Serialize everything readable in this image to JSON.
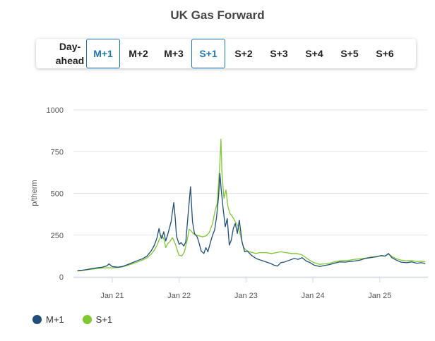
{
  "header": {
    "title": "UK Gas Forward"
  },
  "tabs": [
    {
      "label": "Day-\nahead",
      "active": false
    },
    {
      "label": "M+1",
      "active": true
    },
    {
      "label": "M+2",
      "active": false
    },
    {
      "label": "M+3",
      "active": false
    },
    {
      "label": "S+1",
      "active": true
    },
    {
      "label": "S+2",
      "active": false
    },
    {
      "label": "S+3",
      "active": false
    },
    {
      "label": "S+4",
      "active": false
    },
    {
      "label": "S+5",
      "active": false
    },
    {
      "label": "S+6",
      "active": false
    }
  ],
  "colors": {
    "accent": "#1f77b4",
    "m1": "#1f4e79",
    "s1": "#7ec832",
    "grid": "#e6e6e6"
  },
  "chart_data": {
    "type": "line",
    "title": "UK Gas Forward",
    "xlabel": "",
    "ylabel": "p/therm",
    "ylim": [
      0,
      1000
    ],
    "yticks": [
      0,
      250,
      500,
      750,
      1000
    ],
    "xticks": [
      {
        "label": "Jan 21",
        "x": 2021.0
      },
      {
        "label": "Jan 22",
        "x": 2022.0
      },
      {
        "label": "Jan 23",
        "x": 2023.0
      },
      {
        "label": "Jan 24",
        "x": 2024.0
      },
      {
        "label": "Jan 25",
        "x": 2025.0
      }
    ],
    "xlim": [
      2020.42,
      2025.72
    ],
    "grid": true,
    "legend_position": "bottom-left",
    "series": [
      {
        "name": "M+1",
        "color": "#1f4e79",
        "points": [
          [
            2020.48,
            38
          ],
          [
            2020.55,
            40
          ],
          [
            2020.62,
            44
          ],
          [
            2020.7,
            50
          ],
          [
            2020.78,
            55
          ],
          [
            2020.85,
            58
          ],
          [
            2020.92,
            66
          ],
          [
            2020.95,
            78
          ],
          [
            2021.0,
            62
          ],
          [
            2021.08,
            58
          ],
          [
            2021.15,
            62
          ],
          [
            2021.22,
            72
          ],
          [
            2021.3,
            85
          ],
          [
            2021.38,
            98
          ],
          [
            2021.45,
            108
          ],
          [
            2021.52,
            125
          ],
          [
            2021.58,
            155
          ],
          [
            2021.63,
            190
          ],
          [
            2021.67,
            235
          ],
          [
            2021.7,
            290
          ],
          [
            2021.72,
            250
          ],
          [
            2021.74,
            230
          ],
          [
            2021.77,
            270
          ],
          [
            2021.8,
            215
          ],
          [
            2021.83,
            255
          ],
          [
            2021.86,
            300
          ],
          [
            2021.88,
            330
          ],
          [
            2021.9,
            390
          ],
          [
            2021.92,
            445
          ],
          [
            2021.94,
            360
          ],
          [
            2021.96,
            245
          ],
          [
            2021.98,
            220
          ],
          [
            2022.0,
            195
          ],
          [
            2022.03,
            205
          ],
          [
            2022.07,
            185
          ],
          [
            2022.1,
            210
          ],
          [
            2022.14,
            400
          ],
          [
            2022.17,
            540
          ],
          [
            2022.2,
            330
          ],
          [
            2022.23,
            260
          ],
          [
            2022.27,
            240
          ],
          [
            2022.3,
            200
          ],
          [
            2022.33,
            155
          ],
          [
            2022.37,
            140
          ],
          [
            2022.4,
            175
          ],
          [
            2022.43,
            150
          ],
          [
            2022.47,
            210
          ],
          [
            2022.5,
            250
          ],
          [
            2022.53,
            280
          ],
          [
            2022.56,
            360
          ],
          [
            2022.59,
            480
          ],
          [
            2022.61,
            620
          ],
          [
            2022.63,
            520
          ],
          [
            2022.66,
            400
          ],
          [
            2022.69,
            300
          ],
          [
            2022.72,
            350
          ],
          [
            2022.75,
            190
          ],
          [
            2022.78,
            220
          ],
          [
            2022.81,
            290
          ],
          [
            2022.84,
            320
          ],
          [
            2022.87,
            260
          ],
          [
            2022.9,
            340
          ],
          [
            2022.94,
            210
          ],
          [
            2022.98,
            150
          ],
          [
            2023.02,
            155
          ],
          [
            2023.08,
            130
          ],
          [
            2023.15,
            110
          ],
          [
            2023.22,
            100
          ],
          [
            2023.3,
            90
          ],
          [
            2023.37,
            80
          ],
          [
            2023.42,
            70
          ],
          [
            2023.47,
            65
          ],
          [
            2023.52,
            85
          ],
          [
            2023.58,
            90
          ],
          [
            2023.65,
            100
          ],
          [
            2023.72,
            110
          ],
          [
            2023.78,
            105
          ],
          [
            2023.84,
            115
          ],
          [
            2023.9,
            95
          ],
          [
            2023.96,
            85
          ],
          [
            2024.02,
            70
          ],
          [
            2024.1,
            62
          ],
          [
            2024.17,
            68
          ],
          [
            2024.25,
            74
          ],
          [
            2024.32,
            82
          ],
          [
            2024.4,
            90
          ],
          [
            2024.48,
            88
          ],
          [
            2024.55,
            92
          ],
          [
            2024.62,
            95
          ],
          [
            2024.7,
            100
          ],
          [
            2024.78,
            110
          ],
          [
            2024.86,
            115
          ],
          [
            2024.94,
            120
          ],
          [
            2025.02,
            128
          ],
          [
            2025.08,
            125
          ],
          [
            2025.13,
            140
          ],
          [
            2025.18,
            115
          ],
          [
            2025.25,
            100
          ],
          [
            2025.32,
            88
          ],
          [
            2025.4,
            85
          ],
          [
            2025.48,
            90
          ],
          [
            2025.55,
            82
          ],
          [
            2025.62,
            85
          ],
          [
            2025.68,
            80
          ]
        ]
      },
      {
        "name": "S+1",
        "color": "#7ec832",
        "points": [
          [
            2020.48,
            35
          ],
          [
            2020.55,
            38
          ],
          [
            2020.62,
            42
          ],
          [
            2020.7,
            46
          ],
          [
            2020.78,
            50
          ],
          [
            2020.85,
            53
          ],
          [
            2020.92,
            55
          ],
          [
            2021.0,
            54
          ],
          [
            2021.08,
            56
          ],
          [
            2021.15,
            60
          ],
          [
            2021.22,
            68
          ],
          [
            2021.3,
            78
          ],
          [
            2021.38,
            90
          ],
          [
            2021.45,
            100
          ],
          [
            2021.52,
            115
          ],
          [
            2021.58,
            135
          ],
          [
            2021.63,
            160
          ],
          [
            2021.67,
            190
          ],
          [
            2021.7,
            220
          ],
          [
            2021.74,
            250
          ],
          [
            2021.77,
            230
          ],
          [
            2021.8,
            175
          ],
          [
            2021.83,
            200
          ],
          [
            2021.86,
            210
          ],
          [
            2021.9,
            235
          ],
          [
            2021.94,
            200
          ],
          [
            2021.98,
            150
          ],
          [
            2022.0,
            130
          ],
          [
            2022.04,
            125
          ],
          [
            2022.08,
            150
          ],
          [
            2022.12,
            220
          ],
          [
            2022.15,
            285
          ],
          [
            2022.18,
            275
          ],
          [
            2022.21,
            260
          ],
          [
            2022.25,
            250
          ],
          [
            2022.3,
            245
          ],
          [
            2022.35,
            240
          ],
          [
            2022.4,
            245
          ],
          [
            2022.45,
            265
          ],
          [
            2022.5,
            320
          ],
          [
            2022.54,
            400
          ],
          [
            2022.57,
            440
          ],
          [
            2022.59,
            560
          ],
          [
            2022.61,
            680
          ],
          [
            2022.625,
            825
          ],
          [
            2022.64,
            620
          ],
          [
            2022.67,
            470
          ],
          [
            2022.7,
            520
          ],
          [
            2022.73,
            420
          ],
          [
            2022.76,
            380
          ],
          [
            2022.8,
            360
          ],
          [
            2022.84,
            330
          ],
          [
            2022.88,
            305
          ],
          [
            2022.92,
            245
          ],
          [
            2022.96,
            180
          ],
          [
            2023.0,
            160
          ],
          [
            2023.05,
            150
          ],
          [
            2023.1,
            145
          ],
          [
            2023.15,
            140
          ],
          [
            2023.2,
            145
          ],
          [
            2023.25,
            145
          ],
          [
            2023.3,
            145
          ],
          [
            2023.38,
            140
          ],
          [
            2023.45,
            145
          ],
          [
            2023.52,
            150
          ],
          [
            2023.6,
            145
          ],
          [
            2023.68,
            140
          ],
          [
            2023.75,
            140
          ],
          [
            2023.82,
            135
          ],
          [
            2023.88,
            120
          ],
          [
            2023.95,
            100
          ],
          [
            2024.02,
            85
          ],
          [
            2024.1,
            75
          ],
          [
            2024.18,
            78
          ],
          [
            2024.25,
            82
          ],
          [
            2024.32,
            90
          ],
          [
            2024.4,
            96
          ],
          [
            2024.48,
            98
          ],
          [
            2024.55,
            100
          ],
          [
            2024.62,
            105
          ],
          [
            2024.7,
            108
          ],
          [
            2024.78,
            112
          ],
          [
            2024.86,
            118
          ],
          [
            2024.94,
            122
          ],
          [
            2025.02,
            126
          ],
          [
            2025.08,
            124
          ],
          [
            2025.13,
            138
          ],
          [
            2025.18,
            122
          ],
          [
            2025.25,
            108
          ],
          [
            2025.32,
            100
          ],
          [
            2025.4,
            96
          ],
          [
            2025.48,
            98
          ],
          [
            2025.55,
            92
          ],
          [
            2025.62,
            94
          ],
          [
            2025.68,
            90
          ]
        ]
      }
    ]
  }
}
